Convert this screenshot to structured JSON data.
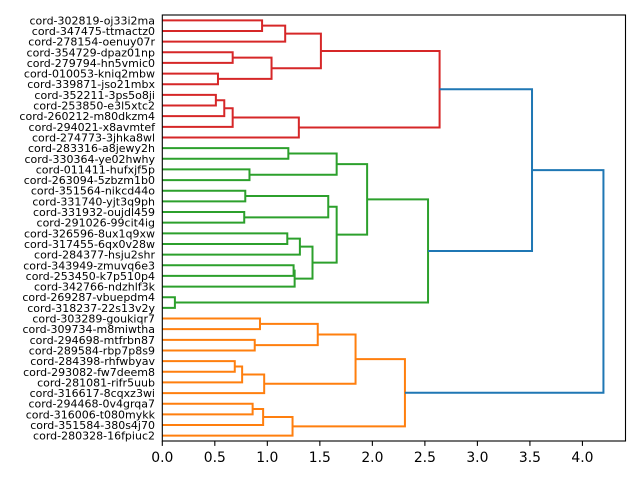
{
  "chart_data": {
    "type": "dendrogram",
    "orientation": "left",
    "title": "",
    "xlabel": "",
    "ylabel": "",
    "grid": false,
    "legend": "none",
    "xlim": [
      0,
      4.41
    ],
    "xticks": [
      0.0,
      0.5,
      1.0,
      1.5,
      2.0,
      2.5,
      3.0,
      3.5,
      4.0
    ],
    "xtick_labels": [
      "0.0",
      "0.5",
      "1.0",
      "1.5",
      "2.0",
      "2.5",
      "3.0",
      "3.5",
      "4.0"
    ],
    "colors": {
      "C0": "#1f77b4",
      "C1": "#ff7f0e",
      "C2": "#2ca02c",
      "C3": "#d62728",
      "axis": "#000000"
    },
    "leaves": [
      "cord-302819-oj33i2ma",
      "cord-347475-ttmactz0",
      "cord-278154-oenuy07r",
      "cord-354729-dpaz01np",
      "cord-279794-hn5vmic0",
      "cord-010053-kniq2mbw",
      "cord-339871-jso21mbx",
      "cord-352211-3ps5o8ji",
      "cord-253850-e3l5xtc2",
      "cord-260212-m80dkzm4",
      "cord-294021-x8avmtef",
      "cord-274773-3jhka8wl",
      "cord-283316-a8jewy2h",
      "cord-330364-ye02hwhy",
      "cord-011411-hufxjf5p",
      "cord-263094-5zbzm1b0",
      "cord-351564-nikcd44o",
      "cord-331740-yjt3q9ph",
      "cord-331932-oujdl459",
      "cord-291026-99cit4ig",
      "cord-326596-8ux1q9xw",
      "cord-317455-6qx0v28w",
      "cord-284377-hsju2shr",
      "cord-343949-zmuvq6e3",
      "cord-253450-k7p510p4",
      "cord-342766-ndzhlf3k",
      "cord-269287-vbuepdm4",
      "cord-318237-22s13v2y",
      "cord-303289-goukiqr7",
      "cord-309734-m8miwtha",
      "cord-294698-mtfrbn87",
      "cord-289584-rbp7p8s9",
      "cord-284398-rhfwbyav",
      "cord-293082-fw7deem8",
      "cord-281081-rifr5uub",
      "cord-316617-8cqxz3wi",
      "cord-294468-0v4grqa7",
      "cord-316006-t080mykk",
      "cord-351584-380s4j70",
      "cord-280328-16fpiuc2"
    ],
    "merges_note": "each merge: [child_a, child_b, distance, color]; ids 0-39 are leaves, merge k creates id 40+k",
    "merges": [
      [
        0,
        1,
        0.95,
        "C3"
      ],
      [
        40,
        2,
        1.17,
        "C3"
      ],
      [
        3,
        4,
        0.67,
        "C3"
      ],
      [
        5,
        6,
        0.53,
        "C3"
      ],
      [
        42,
        43,
        1.04,
        "C3"
      ],
      [
        41,
        44,
        1.51,
        "C3"
      ],
      [
        7,
        8,
        0.51,
        "C3"
      ],
      [
        46,
        9,
        0.59,
        "C3"
      ],
      [
        47,
        10,
        0.67,
        "C3"
      ],
      [
        48,
        11,
        1.3,
        "C3"
      ],
      [
        45,
        49,
        2.64,
        "C3"
      ],
      [
        12,
        13,
        1.2,
        "C2"
      ],
      [
        14,
        15,
        0.83,
        "C2"
      ],
      [
        51,
        52,
        1.66,
        "C2"
      ],
      [
        16,
        17,
        0.79,
        "C2"
      ],
      [
        18,
        19,
        0.78,
        "C2"
      ],
      [
        54,
        55,
        1.58,
        "C2"
      ],
      [
        20,
        21,
        1.19,
        "C2"
      ],
      [
        57,
        22,
        1.31,
        "C2"
      ],
      [
        23,
        24,
        1.25,
        "C2"
      ],
      [
        59,
        25,
        1.26,
        "C2"
      ],
      [
        58,
        60,
        1.43,
        "C2"
      ],
      [
        56,
        61,
        1.66,
        "C2"
      ],
      [
        53,
        62,
        1.95,
        "C2"
      ],
      [
        26,
        27,
        0.12,
        "C2"
      ],
      [
        63,
        64,
        2.53,
        "C2"
      ],
      [
        28,
        29,
        0.93,
        "C1"
      ],
      [
        30,
        31,
        0.88,
        "C1"
      ],
      [
        66,
        67,
        1.48,
        "C1"
      ],
      [
        32,
        33,
        0.69,
        "C1"
      ],
      [
        69,
        34,
        0.76,
        "C1"
      ],
      [
        70,
        35,
        0.97,
        "C1"
      ],
      [
        68,
        71,
        1.84,
        "C1"
      ],
      [
        36,
        37,
        0.86,
        "C1"
      ],
      [
        73,
        38,
        0.96,
        "C1"
      ],
      [
        74,
        39,
        1.24,
        "C1"
      ],
      [
        72,
        75,
        2.31,
        "C1"
      ],
      [
        50,
        65,
        3.52,
        "C0"
      ],
      [
        77,
        76,
        4.2,
        "C0"
      ]
    ]
  }
}
